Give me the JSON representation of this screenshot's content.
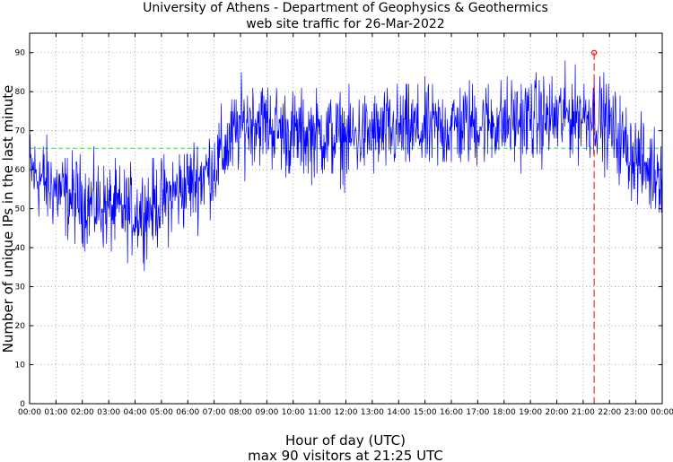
{
  "chart_data": {
    "type": "line",
    "title": "University of Athens - Department of Geophysics & Geothermics",
    "subtitle": "web site traffic for 26-Mar-2022",
    "xlabel": "Hour of day (UTC)",
    "ylabel": "Number of unique IPs in the last minute",
    "footer": "max 90 visitors at 21:25 UTC",
    "xlim": [
      0,
      24
    ],
    "ylim": [
      0,
      95
    ],
    "x_ticks": [
      0,
      1,
      2,
      3,
      4,
      5,
      6,
      7,
      8,
      9,
      10,
      11,
      12,
      13,
      14,
      15,
      16,
      17,
      18,
      19,
      20,
      21,
      22,
      23,
      24
    ],
    "x_tick_labels": [
      "00:00",
      "01:00",
      "02:00",
      "03:00",
      "04:00",
      "05:00",
      "06:00",
      "07:00",
      "08:00",
      "09:00",
      "10:00",
      "11:00",
      "12:00",
      "13:00",
      "14:00",
      "15:00",
      "16:00",
      "17:00",
      "18:00",
      "19:00",
      "20:00",
      "21:00",
      "22:00",
      "23:00",
      "00:00"
    ],
    "y_ticks": [
      0,
      10,
      20,
      30,
      40,
      50,
      60,
      70,
      80,
      90
    ],
    "y_tick_labels": [
      "0",
      "10",
      "20",
      "30",
      "40",
      "50",
      "60",
      "70",
      "80",
      "90"
    ],
    "grid": true,
    "series_color": "#0000ff",
    "mean_line": {
      "value": 65.5,
      "color": "#33dd33"
    },
    "max_marker": {
      "x": 21.4167,
      "y": 90,
      "color": "#ff0000"
    },
    "trend": {
      "x": [
        0,
        0.5,
        1,
        1.5,
        2,
        2.5,
        3,
        3.5,
        4,
        4.5,
        5,
        5.5,
        6,
        6.5,
        7,
        7.5,
        8,
        8.5,
        9,
        9.5,
        10,
        11,
        12,
        13,
        14,
        15,
        16,
        17,
        18,
        19,
        20,
        20.5,
        21,
        21.5,
        22,
        22.5,
        23,
        23.5,
        24
      ],
      "y": [
        60,
        57,
        55,
        53,
        52,
        51,
        50,
        49.5,
        49,
        50,
        52,
        54,
        56,
        58,
        61,
        66,
        71,
        73,
        72,
        70,
        69,
        69,
        68,
        69,
        70,
        70,
        71,
        72,
        72,
        73,
        73,
        74,
        74,
        74,
        71,
        67,
        63,
        60,
        60
      ]
    },
    "noise_amplitude": 5.5,
    "samples_per_hour": 60
  }
}
